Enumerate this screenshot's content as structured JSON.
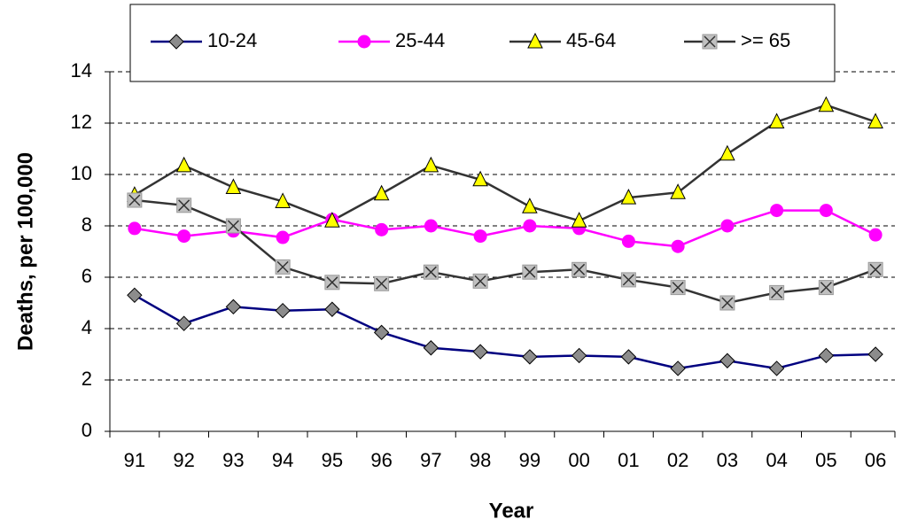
{
  "chart_data": {
    "type": "line",
    "xlabel": "Year",
    "ylabel": "Deaths, per 100,000",
    "categories": [
      "91",
      "92",
      "93",
      "94",
      "95",
      "96",
      "97",
      "98",
      "99",
      "00",
      "01",
      "02",
      "03",
      "04",
      "05",
      "06"
    ],
    "ylim": [
      0,
      14
    ],
    "yticks": [
      0,
      2,
      4,
      6,
      8,
      10,
      12,
      14
    ],
    "grid": true,
    "legend": "top",
    "series": [
      {
        "name": "10-24",
        "color": "#000080",
        "marker": "diamond",
        "marker_color": "#8c8c8c",
        "values": [
          5.3,
          4.2,
          4.85,
          4.7,
          4.75,
          3.85,
          3.25,
          3.1,
          2.9,
          2.95,
          2.9,
          2.45,
          2.75,
          2.45,
          2.95,
          3.0
        ]
      },
      {
        "name": "25-44",
        "color": "#ff00ff",
        "marker": "circle",
        "marker_color": "#ff00ff",
        "values": [
          7.9,
          7.6,
          7.8,
          7.55,
          8.25,
          7.85,
          8.0,
          7.6,
          8.0,
          7.9,
          7.4,
          7.2,
          8.0,
          8.6,
          8.6,
          7.65
        ]
      },
      {
        "name": "45-64",
        "color": "#333333",
        "marker": "triangle",
        "marker_color": "#ffff00",
        "values": [
          9.2,
          10.35,
          9.5,
          8.95,
          8.2,
          9.25,
          10.35,
          9.8,
          8.75,
          8.2,
          9.1,
          9.3,
          10.8,
          12.05,
          12.7,
          12.05
        ]
      },
      {
        "name": ">= 65",
        "color": "#333333",
        "marker": "xsquare",
        "marker_color": "#c0c0c0",
        "values": [
          9.0,
          8.8,
          8.0,
          6.4,
          5.8,
          5.75,
          6.2,
          5.85,
          6.2,
          6.3,
          5.9,
          5.6,
          5.0,
          5.4,
          5.6,
          6.3
        ]
      }
    ]
  }
}
